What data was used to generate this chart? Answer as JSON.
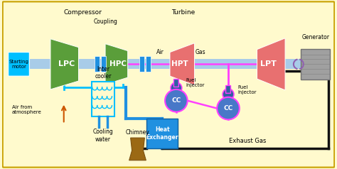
{
  "bg_color": "#FFFACD",
  "border_color": "#C8A000",
  "green": "#5A9E3A",
  "salmon": "#E87070",
  "cyan": "#00BFFF",
  "blue": "#2090E0",
  "magenta": "#FF40FF",
  "brown": "#9B6914",
  "light_blue_shaft": "#A8CCE8",
  "cc_blue": "#4878C8",
  "fi_blue": "#3060A0",
  "gray_gen": "#A0A0A0",
  "gray_gen_dark": "#707070",
  "orange_arrow": "#CC5500",
  "purple_arc": "#9060B0",
  "black": "#111111",
  "white": "#FFFFFF",
  "labels": {
    "compressor": "Compressor",
    "turbine": "Turbine",
    "coupling": "Coupling",
    "lpc": "LPC",
    "hpc": "HPC",
    "hpt": "HPT",
    "lpt": "LPT",
    "starting_motor": "Starting\nmotor",
    "generator": "Generator",
    "inter_cooler": "Inter\ncooler",
    "cooling_water": "Cooling\nwater",
    "chimney": "Chimney",
    "heat_exchanger": "Heat\nExchanger",
    "fuel_injector1": "Fuel\ninjector",
    "fuel_injector2": "Fuel\ninjector",
    "air": "Air",
    "gas": "Gas",
    "exhaust_gas": "Exhaust Gas",
    "air_from_atm": "Air from\natmosphere"
  }
}
